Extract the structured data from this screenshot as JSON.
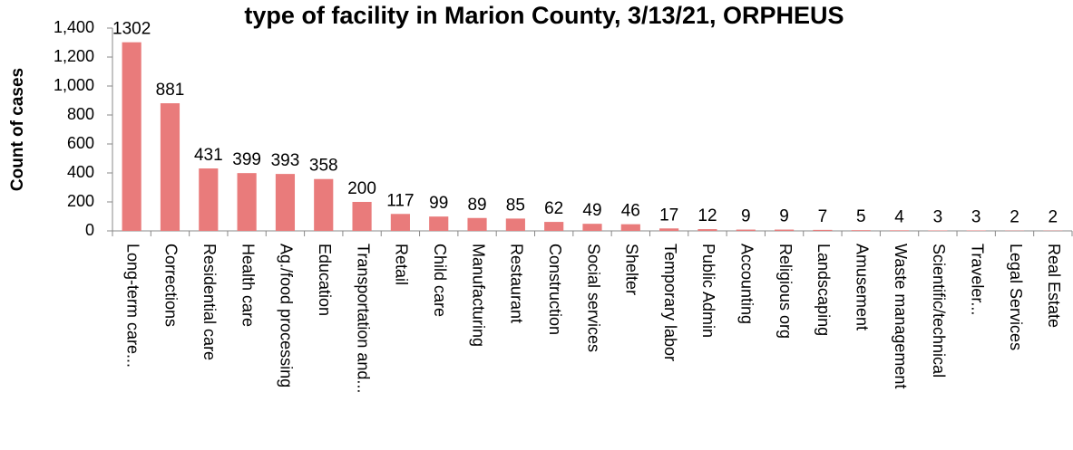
{
  "chart_data": {
    "type": "bar",
    "title": "type of facility in Marion County, 3/13/21, ORPHEUS",
    "y_label": "Count of cases",
    "categories": [
      "Long-term care...",
      "Corrections",
      "Residential care",
      "Health care",
      "Ag./food processing",
      "Education",
      "Transportation and...",
      "Retail",
      "Child care",
      "Manufacturing",
      "Restaurant",
      "Construction",
      "Social services",
      "Shelter",
      "Temporary labor",
      "Public Admin",
      "Accounting",
      "Religious org",
      "Landscaping",
      "Amusement",
      "Waste management",
      "Scientific/technical",
      "Traveler...",
      "Legal Services",
      "Real Estate"
    ],
    "values": [
      1302,
      881,
      431,
      399,
      393,
      358,
      200,
      117,
      99,
      89,
      85,
      62,
      49,
      46,
      17,
      12,
      9,
      9,
      7,
      5,
      4,
      3,
      3,
      2,
      2
    ],
    "color": "#e97b7b",
    "ylim": [
      0,
      1400
    ],
    "yticks": [
      0,
      200,
      400,
      600,
      800,
      {
        "value": 1000,
        "label": "1,000"
      },
      {
        "value": 1200,
        "label": "1,200"
      },
      {
        "value": 1400,
        "label": "1,400"
      }
    ],
    "grid": false
  }
}
